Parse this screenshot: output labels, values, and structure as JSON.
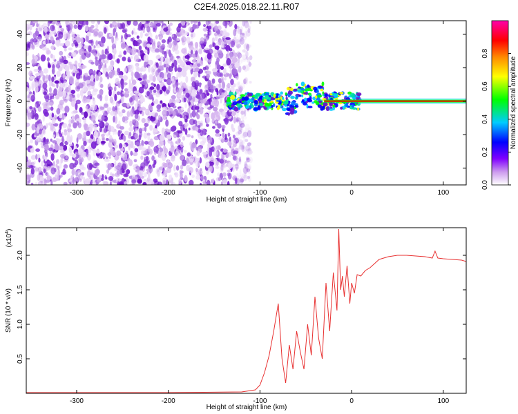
{
  "chart_data": [
    {
      "type": "heatmap",
      "title": "C2E4.2025.018.22.11.R07",
      "xlabel": "Height of straight line (km)",
      "ylabel": "Frequency (Hz)",
      "xlim": [
        -355,
        125
      ],
      "ylim": [
        -50,
        48
      ],
      "xticks": [
        -300,
        -200,
        -100,
        0,
        100
      ],
      "xtick_labels": [
        "-300",
        "-200",
        "-100",
        "0",
        "100"
      ],
      "yticks": [
        -40,
        -20,
        0,
        20,
        40
      ],
      "ytick_labels": [
        "-40",
        "-20",
        "0",
        "20",
        "40"
      ],
      "noise_region_km": [
        -355,
        -125
      ],
      "signal_start_km": -135,
      "coherent_start_km": 8,
      "colorbar": {
        "label": "Normalized spectral amplitude",
        "range": [
          0,
          1
        ],
        "ticks": [
          0.0,
          0.2,
          0.4,
          0.6,
          0.8
        ],
        "tick_labels": [
          "0.0",
          "0.2",
          "0.4",
          "0.6",
          "0.8"
        ],
        "colors": [
          "#ffffff",
          "#cc99ee",
          "#8000ff",
          "#0000ff",
          "#00ccff",
          "#00ff00",
          "#ffff00",
          "#ff8800",
          "#ff0000",
          "#ff00aa"
        ]
      }
    },
    {
      "type": "line",
      "xlabel": "Height of straight line (km)",
      "ylabel": "SNR (10 * v/v)",
      "multiplier_label": "(x10",
      "multiplier_exp": "4",
      "multiplier_close": ")",
      "xlim": [
        -355,
        125
      ],
      "ylim": [
        0,
        2.4
      ],
      "xticks": [
        -300,
        -200,
        -100,
        0,
        100
      ],
      "xtick_labels": [
        "-300",
        "-200",
        "-100",
        "0",
        "100"
      ],
      "yticks": [
        0.5,
        1.0,
        1.5,
        2.0
      ],
      "ytick_labels": [
        "0.5",
        "1.0",
        "1.5",
        "2.0"
      ],
      "color": "#e83030",
      "series": [
        {
          "name": "SNR",
          "x": [
            -355,
            -200,
            -120,
            -105,
            -100,
            -95,
            -90,
            -85,
            -80,
            -76,
            -72,
            -68,
            -64,
            -60,
            -56,
            -52,
            -48,
            -44,
            -40,
            -36,
            -32,
            -28,
            -24,
            -20,
            -16,
            -14,
            -12,
            -10,
            -8,
            -5,
            -2,
            0,
            3,
            6,
            10,
            15,
            20,
            25,
            30,
            40,
            50,
            60,
            70,
            80,
            88,
            91,
            94,
            100,
            110,
            120,
            125
          ],
          "y": [
            0.01,
            0.01,
            0.02,
            0.05,
            0.12,
            0.3,
            0.55,
            0.9,
            1.3,
            0.5,
            0.15,
            0.7,
            0.35,
            0.9,
            0.6,
            0.35,
            1.0,
            0.55,
            1.4,
            0.8,
            0.5,
            1.6,
            0.9,
            1.75,
            1.2,
            2.38,
            1.5,
            1.7,
            1.4,
            1.85,
            1.3,
            1.6,
            1.45,
            1.72,
            1.7,
            1.78,
            1.82,
            1.88,
            1.94,
            1.98,
            2.0,
            2.0,
            1.99,
            1.98,
            1.96,
            2.06,
            1.96,
            1.95,
            1.94,
            1.93,
            1.91
          ]
        }
      ]
    }
  ]
}
